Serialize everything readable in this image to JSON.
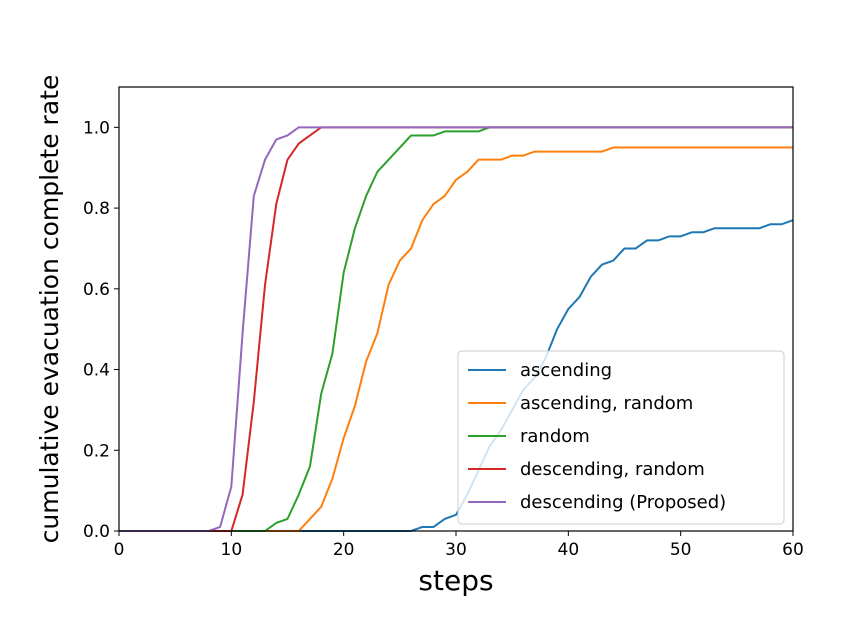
{
  "chart_data": {
    "type": "line",
    "xlabel": "steps",
    "ylabel": "cumulative evacuation complete rate",
    "xlim": [
      0,
      60
    ],
    "ylim": [
      0,
      1.1
    ],
    "xticks": [
      0,
      10,
      20,
      30,
      40,
      50,
      60
    ],
    "yticks": [
      0.0,
      0.2,
      0.4,
      0.6,
      0.8,
      1.0
    ],
    "xtick_labels": [
      "0",
      "10",
      "20",
      "30",
      "40",
      "50",
      "60"
    ],
    "ytick_labels": [
      "0.0",
      "0.2",
      "0.4",
      "0.6",
      "0.8",
      "1.0"
    ],
    "grid": false,
    "legend_position": "lower-right",
    "series": [
      {
        "name": "ascending",
        "color": "#1f77b4",
        "x": [
          0,
          26,
          27,
          28,
          29,
          30,
          31,
          32,
          33,
          34,
          35,
          36,
          37,
          38,
          39,
          40,
          41,
          42,
          43,
          44,
          45,
          46,
          47,
          48,
          49,
          50,
          51,
          52,
          53,
          54,
          55,
          56,
          57,
          58,
          59,
          60
        ],
        "y": [
          0,
          0,
          0.01,
          0.01,
          0.03,
          0.04,
          0.09,
          0.15,
          0.21,
          0.25,
          0.3,
          0.35,
          0.38,
          0.43,
          0.5,
          0.55,
          0.58,
          0.63,
          0.66,
          0.67,
          0.7,
          0.7,
          0.72,
          0.72,
          0.73,
          0.73,
          0.74,
          0.74,
          0.75,
          0.75,
          0.75,
          0.75,
          0.75,
          0.76,
          0.76,
          0.77
        ]
      },
      {
        "name": "ascending, random",
        "color": "#ff7f0e",
        "x": [
          0,
          16,
          17,
          18,
          19,
          20,
          21,
          22,
          23,
          24,
          25,
          26,
          27,
          28,
          29,
          30,
          31,
          32,
          33,
          34,
          35,
          36,
          37,
          38,
          43,
          44,
          60
        ],
        "y": [
          0,
          0,
          0.03,
          0.06,
          0.13,
          0.23,
          0.31,
          0.42,
          0.49,
          0.61,
          0.67,
          0.7,
          0.77,
          0.81,
          0.83,
          0.87,
          0.89,
          0.92,
          0.92,
          0.92,
          0.93,
          0.93,
          0.94,
          0.94,
          0.94,
          0.95,
          0.95
        ]
      },
      {
        "name": "random",
        "color": "#2ca02c",
        "x": [
          0,
          13,
          14,
          15,
          16,
          17,
          18,
          19,
          20,
          21,
          22,
          23,
          24,
          25,
          26,
          27,
          28,
          29,
          30,
          31,
          32,
          33,
          60
        ],
        "y": [
          0,
          0,
          0.02,
          0.03,
          0.09,
          0.16,
          0.34,
          0.44,
          0.64,
          0.75,
          0.83,
          0.89,
          0.92,
          0.95,
          0.98,
          0.98,
          0.98,
          0.99,
          0.99,
          0.99,
          0.99,
          1.0,
          1.0
        ]
      },
      {
        "name": "descending, random",
        "color": "#d62728",
        "x": [
          0,
          10,
          11,
          12,
          13,
          14,
          15,
          16,
          17,
          18,
          60
        ],
        "y": [
          0,
          0,
          0.09,
          0.32,
          0.61,
          0.81,
          0.92,
          0.96,
          0.98,
          1.0,
          1.0
        ]
      },
      {
        "name": "descending (Proposed)",
        "color": "#9467bd",
        "x": [
          0,
          8,
          9,
          10,
          11,
          12,
          13,
          14,
          15,
          16,
          60
        ],
        "y": [
          0,
          0,
          0.01,
          0.11,
          0.49,
          0.83,
          0.92,
          0.97,
          0.98,
          1.0,
          1.0
        ]
      }
    ]
  }
}
